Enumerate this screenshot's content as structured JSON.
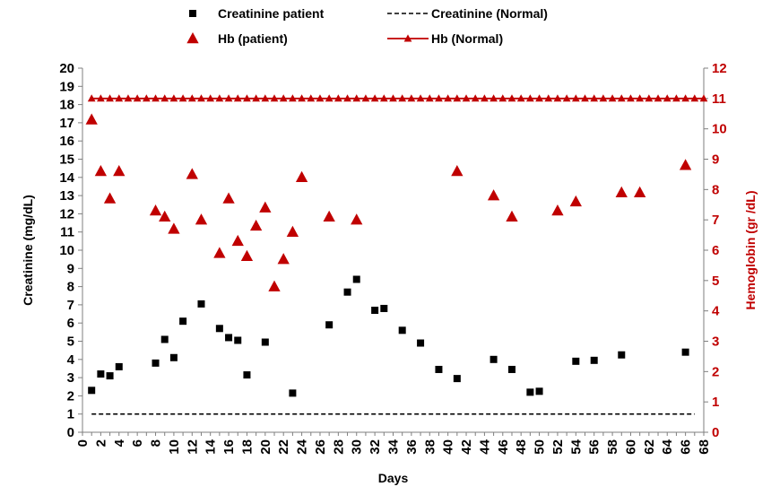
{
  "chart_data": {
    "type": "scatter",
    "xlabel": "Days",
    "ylabel_left": "Creatinine (mg/dL)",
    "ylabel_right": "Hemoglobin (gr /dL)",
    "xlim": [
      0,
      68
    ],
    "x_ticks": [
      0,
      2,
      4,
      6,
      8,
      10,
      12,
      14,
      16,
      18,
      20,
      22,
      24,
      26,
      28,
      30,
      32,
      34,
      36,
      38,
      40,
      42,
      44,
      46,
      48,
      50,
      52,
      54,
      56,
      58,
      60,
      62,
      64,
      66,
      68
    ],
    "ylim_left": [
      0,
      20
    ],
    "y_ticks_left": [
      0,
      1,
      2,
      3,
      4,
      5,
      6,
      7,
      8,
      9,
      10,
      11,
      12,
      13,
      14,
      15,
      16,
      17,
      18,
      19,
      20
    ],
    "ylim_right": [
      0,
      12
    ],
    "y_ticks_right": [
      0,
      1,
      2,
      3,
      4,
      5,
      6,
      7,
      8,
      9,
      10,
      11,
      12
    ],
    "grid": false,
    "legend_position": "top",
    "series": [
      {
        "name": "Creatinine patient",
        "axis": "left",
        "marker": "square",
        "color": "#000000",
        "points": [
          [
            1,
            2.3
          ],
          [
            2,
            3.2
          ],
          [
            3,
            3.1
          ],
          [
            4,
            3.6
          ],
          [
            8,
            3.8
          ],
          [
            9,
            5.1
          ],
          [
            10,
            4.1
          ],
          [
            11,
            6.1
          ],
          [
            13,
            7.05
          ],
          [
            15,
            5.7
          ],
          [
            16,
            5.2
          ],
          [
            17,
            5.05
          ],
          [
            18,
            3.15
          ],
          [
            20,
            4.95
          ],
          [
            23,
            2.15
          ],
          [
            27,
            5.9
          ],
          [
            29,
            7.7
          ],
          [
            30,
            8.4
          ],
          [
            32,
            6.7
          ],
          [
            33,
            6.8
          ],
          [
            35,
            5.6
          ],
          [
            37,
            4.9
          ],
          [
            39,
            3.45
          ],
          [
            41,
            2.95
          ],
          [
            45,
            4.0
          ],
          [
            47,
            3.45
          ],
          [
            49,
            2.2
          ],
          [
            50,
            2.25
          ],
          [
            54,
            3.9
          ],
          [
            56,
            3.95
          ],
          [
            59,
            4.25
          ],
          [
            66,
            4.4
          ]
        ]
      },
      {
        "name": "Creatinine (Normal)",
        "axis": "left",
        "style": "dashed-line",
        "color": "#000000",
        "points": [
          [
            1,
            1
          ],
          [
            67,
            1
          ]
        ]
      },
      {
        "name": "Hb (patient)",
        "axis": "right",
        "marker": "triangle",
        "color": "#c00000",
        "points": [
          [
            1,
            10.3
          ],
          [
            2,
            8.6
          ],
          [
            3,
            7.7
          ],
          [
            4,
            8.6
          ],
          [
            8,
            7.3
          ],
          [
            9,
            7.1
          ],
          [
            10,
            6.7
          ],
          [
            12,
            8.5
          ],
          [
            13,
            7.0
          ],
          [
            15,
            5.9
          ],
          [
            16,
            7.7
          ],
          [
            17,
            6.3
          ],
          [
            18,
            5.8
          ],
          [
            19,
            6.8
          ],
          [
            20,
            7.4
          ],
          [
            21,
            4.8
          ],
          [
            22,
            5.7
          ],
          [
            23,
            6.6
          ],
          [
            24,
            8.4
          ],
          [
            27,
            7.1
          ],
          [
            30,
            7.0
          ],
          [
            41,
            8.6
          ],
          [
            45,
            7.8
          ],
          [
            47,
            7.1
          ],
          [
            52,
            7.3
          ],
          [
            54,
            7.6
          ],
          [
            59,
            7.9
          ],
          [
            61,
            7.9
          ],
          [
            66,
            8.8
          ]
        ]
      },
      {
        "name": "Hb (Normal)",
        "axis": "right",
        "style": "line-triangle",
        "color": "#c00000",
        "y": 11,
        "x": [
          1,
          2,
          3,
          4,
          5,
          6,
          7,
          8,
          9,
          10,
          11,
          12,
          13,
          14,
          15,
          16,
          17,
          18,
          19,
          20,
          21,
          22,
          23,
          24,
          25,
          26,
          27,
          28,
          29,
          30,
          31,
          32,
          33,
          34,
          35,
          36,
          37,
          38,
          39,
          40,
          41,
          42,
          43,
          44,
          45,
          46,
          47,
          48,
          49,
          50,
          51,
          52,
          53,
          54,
          55,
          56,
          57,
          58,
          59,
          60,
          61,
          62,
          63,
          64,
          65,
          66,
          67,
          68
        ]
      }
    ]
  }
}
